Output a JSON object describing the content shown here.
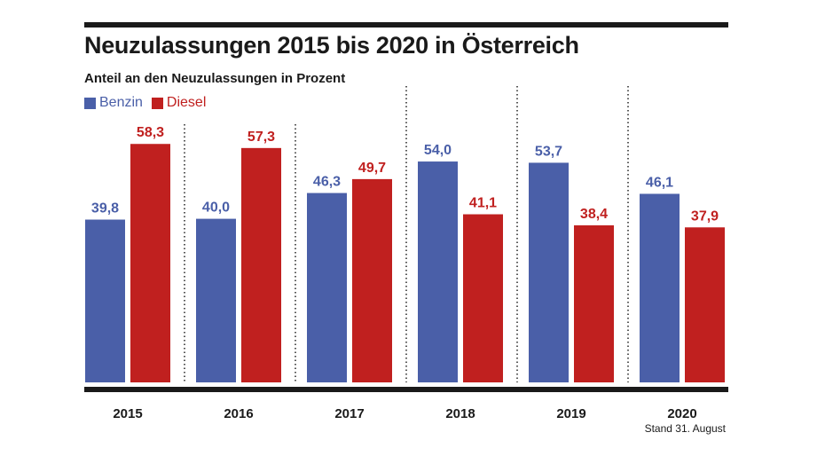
{
  "chart_data": {
    "type": "bar",
    "title": "Neuzulassungen 2015 bis 2020 in Österreich",
    "subtitle": "Anteil an den Neuzulassungen in Prozent",
    "categories": [
      "2015",
      "2016",
      "2017",
      "2018",
      "2019",
      "2020"
    ],
    "series": [
      {
        "name": "Benzin",
        "color": "#4a5fa8",
        "values": [
          39.8,
          40.0,
          46.3,
          54.0,
          53.7,
          46.1
        ],
        "labels": [
          "39,8",
          "40,0",
          "46,3",
          "54,0",
          "53,7",
          "46,1"
        ]
      },
      {
        "name": "Diesel",
        "color": "#c0201f",
        "values": [
          58.3,
          57.3,
          49.7,
          41.1,
          38.4,
          37.9
        ],
        "labels": [
          "58,3",
          "57,3",
          "49,7",
          "41,1",
          "38,4",
          "37,9"
        ]
      }
    ],
    "ylim": [
      0,
      60
    ],
    "grid": false,
    "legend": "top-left",
    "note": "Stand 31. August"
  }
}
